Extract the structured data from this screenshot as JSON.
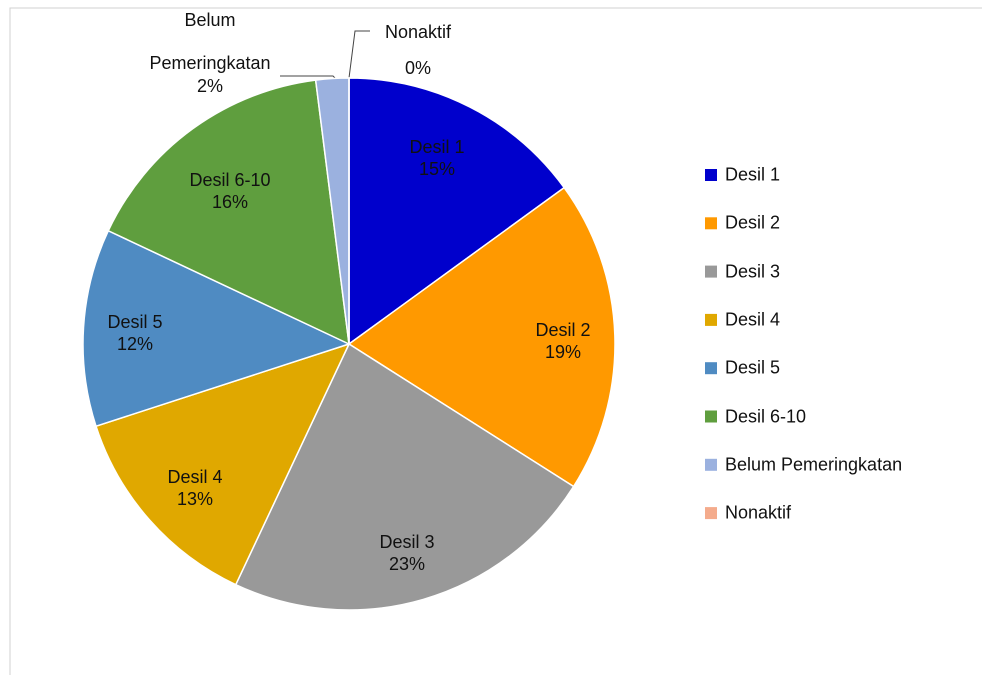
{
  "chart_data": {
    "type": "pie",
    "categories": [
      "Desil 1",
      "Desil 2",
      "Desil 3",
      "Desil 4",
      "Desil 5",
      "Desil 6-10",
      "Belum Pemeringkatan",
      "Nonaktif"
    ],
    "values": [
      15,
      19,
      23,
      13,
      12,
      16,
      2,
      0
    ],
    "value_labels": [
      "15%",
      "19%",
      "23%",
      "13%",
      "12%",
      "16%",
      "2%",
      "0%"
    ],
    "colors": [
      "#0000cc",
      "#ff9900",
      "#999999",
      "#e0a800",
      "#4f8bc2",
      "#5f9e3e",
      "#9bb1df",
      "#f4ab8c"
    ],
    "legend": "right"
  }
}
